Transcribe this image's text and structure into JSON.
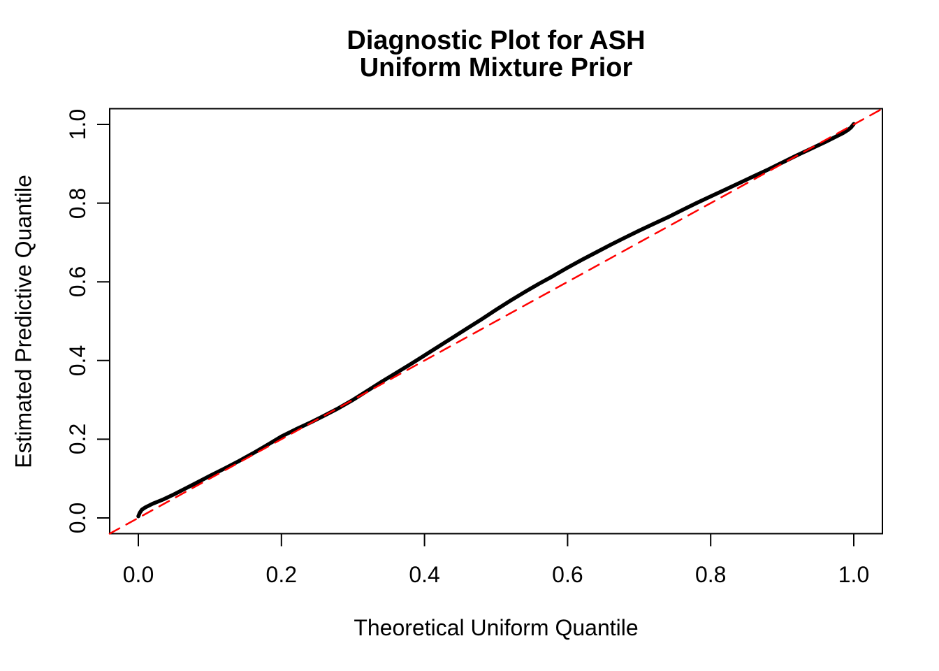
{
  "chart": {
    "title_line1": "Diagnostic Plot for ASH",
    "title_line2": "Uniform Mixture Prior",
    "xlabel": "Theoretical Uniform Quantile",
    "ylabel": "Estimated Predictive Quantile"
  },
  "colors": {
    "background": "#FFFFFF",
    "axis": "#000000",
    "curve": "#000000",
    "reference_line": "#FF0000"
  },
  "chart_data": {
    "type": "line",
    "title": "Diagnostic Plot for ASH\nUniform Mixture Prior",
    "xlabel": "Theoretical Uniform Quantile",
    "ylabel": "Estimated Predictive Quantile",
    "xlim": [
      -0.04,
      1.04
    ],
    "ylim": [
      -0.04,
      1.04
    ],
    "x_ticks": [
      0.0,
      0.2,
      0.4,
      0.6,
      0.8,
      1.0
    ],
    "y_ticks": [
      0.0,
      0.2,
      0.4,
      0.6,
      0.8,
      1.0
    ],
    "tick_label_decimals": 1,
    "grid": false,
    "legend": "none",
    "series": [
      {
        "name": "estimated-predictive-quantile-curve",
        "color": "#000000",
        "style": "solid",
        "line_width": 5.5,
        "points": [
          [
            0.0,
            0.004
          ],
          [
            0.002,
            0.013
          ],
          [
            0.005,
            0.021
          ],
          [
            0.01,
            0.027
          ],
          [
            0.02,
            0.036
          ],
          [
            0.035,
            0.047
          ],
          [
            0.05,
            0.06
          ],
          [
            0.065,
            0.074
          ],
          [
            0.08,
            0.088
          ],
          [
            0.1,
            0.107
          ],
          [
            0.12,
            0.125
          ],
          [
            0.14,
            0.144
          ],
          [
            0.16,
            0.164
          ],
          [
            0.18,
            0.185
          ],
          [
            0.2,
            0.207
          ],
          [
            0.22,
            0.225
          ],
          [
            0.24,
            0.242
          ],
          [
            0.26,
            0.26
          ],
          [
            0.28,
            0.279
          ],
          [
            0.3,
            0.3
          ],
          [
            0.32,
            0.323
          ],
          [
            0.34,
            0.346
          ],
          [
            0.36,
            0.368
          ],
          [
            0.38,
            0.39
          ],
          [
            0.4,
            0.413
          ],
          [
            0.42,
            0.436
          ],
          [
            0.44,
            0.459
          ],
          [
            0.46,
            0.482
          ],
          [
            0.48,
            0.505
          ],
          [
            0.5,
            0.529
          ],
          [
            0.52,
            0.552
          ],
          [
            0.54,
            0.574
          ],
          [
            0.56,
            0.595
          ],
          [
            0.58,
            0.615
          ],
          [
            0.6,
            0.636
          ],
          [
            0.62,
            0.656
          ],
          [
            0.64,
            0.675
          ],
          [
            0.66,
            0.694
          ],
          [
            0.68,
            0.712
          ],
          [
            0.7,
            0.73
          ],
          [
            0.72,
            0.747
          ],
          [
            0.74,
            0.764
          ],
          [
            0.76,
            0.782
          ],
          [
            0.78,
            0.8
          ],
          [
            0.8,
            0.817
          ],
          [
            0.82,
            0.834
          ],
          [
            0.84,
            0.851
          ],
          [
            0.86,
            0.868
          ],
          [
            0.88,
            0.885
          ],
          [
            0.9,
            0.903
          ],
          [
            0.92,
            0.921
          ],
          [
            0.94,
            0.938
          ],
          [
            0.96,
            0.955
          ],
          [
            0.975,
            0.969
          ],
          [
            0.985,
            0.978
          ],
          [
            0.992,
            0.986
          ],
          [
            0.996,
            0.992
          ],
          [
            1.0,
            1.001
          ]
        ]
      },
      {
        "name": "identity-reference-line",
        "color": "#FF0000",
        "style": "dashed",
        "line_width": 2.5,
        "points": [
          [
            -0.04,
            -0.04
          ],
          [
            1.04,
            1.04
          ]
        ]
      }
    ]
  }
}
